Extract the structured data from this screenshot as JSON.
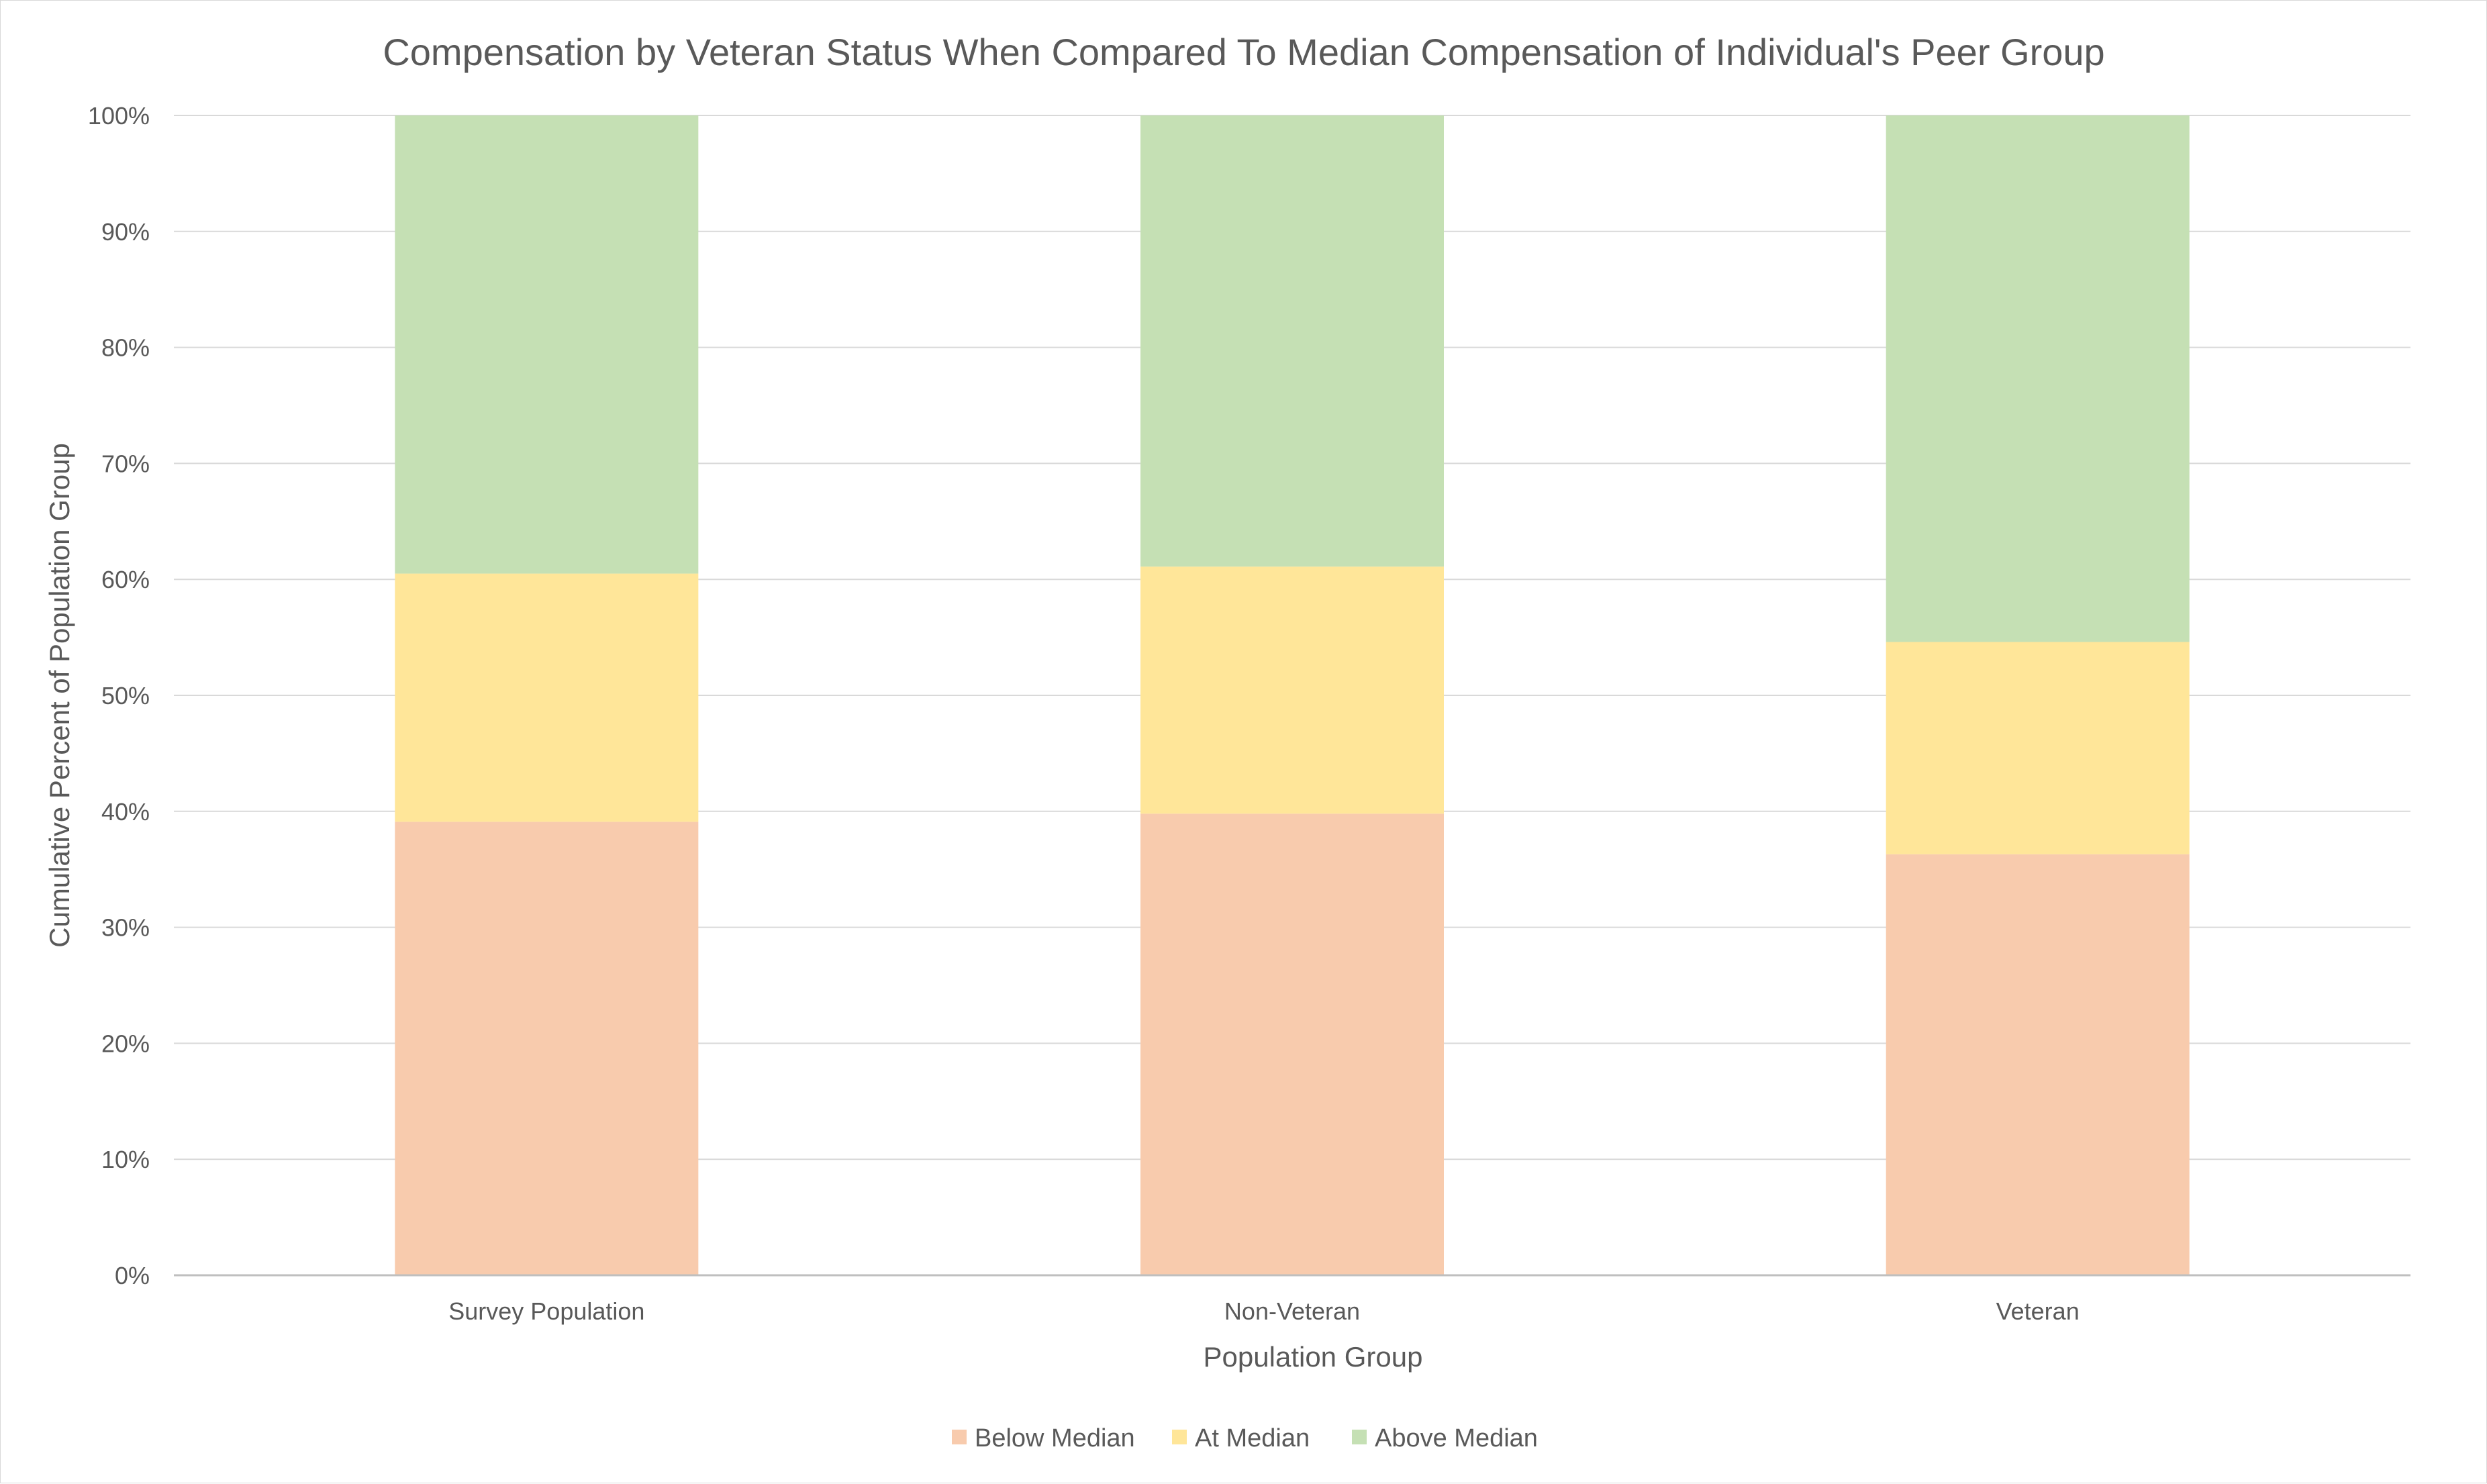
{
  "chart_data": {
    "type": "bar",
    "stacked": true,
    "title": "Compensation by Veteran Status When Compared To Median Compensation of Individual's Peer Group",
    "xlabel": "Population Group",
    "ylabel": "Cumulative Percent of Population Group",
    "categories": [
      "Survey Population",
      "Non-Veteran",
      "Veteran"
    ],
    "series": [
      {
        "name": "Below Median",
        "color": "#f8cbad",
        "values": [
          39.1,
          39.8,
          36.3
        ]
      },
      {
        "name": "At Median",
        "color": "#ffe699",
        "values": [
          21.4,
          21.3,
          18.3
        ]
      },
      {
        "name": "Above Median",
        "color": "#c5e0b4",
        "values": [
          39.5,
          38.9,
          45.4
        ]
      }
    ],
    "ylim": [
      0,
      100
    ],
    "yticks": [
      0,
      10,
      20,
      30,
      40,
      50,
      60,
      70,
      80,
      90,
      100
    ],
    "ytick_labels": [
      "0%",
      "10%",
      "20%",
      "30%",
      "40%",
      "50%",
      "60%",
      "70%",
      "80%",
      "90%",
      "100%"
    ],
    "grid": true,
    "legend_position": "bottom"
  }
}
